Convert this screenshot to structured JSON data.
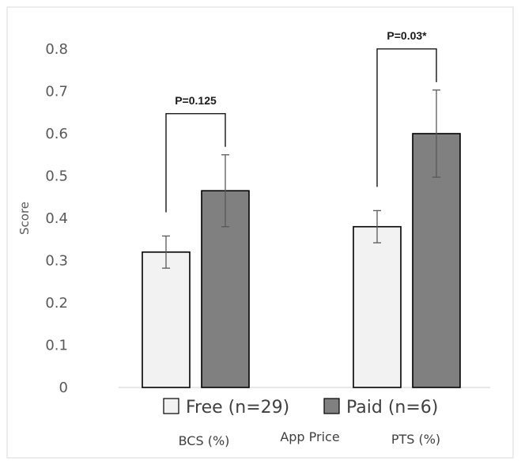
{
  "chart_data": {
    "type": "bar",
    "categories": [
      "BCS (%)",
      "PTS (%)"
    ],
    "xlabel": "App Price",
    "ylabel": "Score",
    "ylim": [
      0,
      0.8
    ],
    "yticks": [
      "0",
      "0.1",
      "0.2",
      "0.3",
      "0.4",
      "0.5",
      "0.6",
      "0.7",
      "0.8"
    ],
    "grid": false,
    "legend_position": "bottom",
    "series": [
      {
        "name": "Free (n=29)",
        "color": "#f2f2f2",
        "values": [
          0.32,
          0.38
        ],
        "error": [
          0.038,
          0.038
        ]
      },
      {
        "name": "Paid (n=6)",
        "color": "#808080",
        "values": [
          0.465,
          0.6
        ],
        "error": [
          0.085,
          0.103
        ]
      }
    ],
    "annotations": [
      {
        "text": "P=0.125",
        "category": "BCS (%)"
      },
      {
        "text": "P=0.03*",
        "category": "PTS (%)"
      }
    ]
  }
}
